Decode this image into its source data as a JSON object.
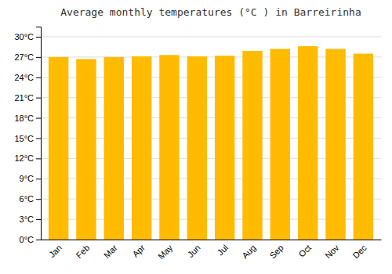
{
  "chart_data": {
    "type": "bar",
    "title": "Average monthly temperatures (°C ) in Barreirinha",
    "categories": [
      "Jan",
      "Feb",
      "Mar",
      "Apr",
      "May",
      "Jun",
      "Jul",
      "Aug",
      "Sep",
      "Oct",
      "Nov",
      "Dec"
    ],
    "values": [
      27.0,
      26.7,
      27.0,
      27.1,
      27.3,
      27.1,
      27.2,
      27.9,
      28.2,
      28.6,
      28.2,
      27.5
    ],
    "color": "#FFBB00",
    "ylim": [
      0,
      31.5
    ],
    "yticks": [
      {
        "value": 0,
        "label": "0°C"
      },
      {
        "value": 3,
        "label": "3°C"
      },
      {
        "value": 6,
        "label": "6°C"
      },
      {
        "value": 9,
        "label": "9°C"
      },
      {
        "value": 12,
        "label": "12°C"
      },
      {
        "value": 15,
        "label": "15°C"
      },
      {
        "value": 18,
        "label": "18°C"
      },
      {
        "value": 21,
        "label": "21°C"
      },
      {
        "value": 24,
        "label": "24°C"
      },
      {
        "value": 27,
        "label": "27°C"
      },
      {
        "value": 30,
        "label": "30°C"
      }
    ],
    "grid": true
  }
}
